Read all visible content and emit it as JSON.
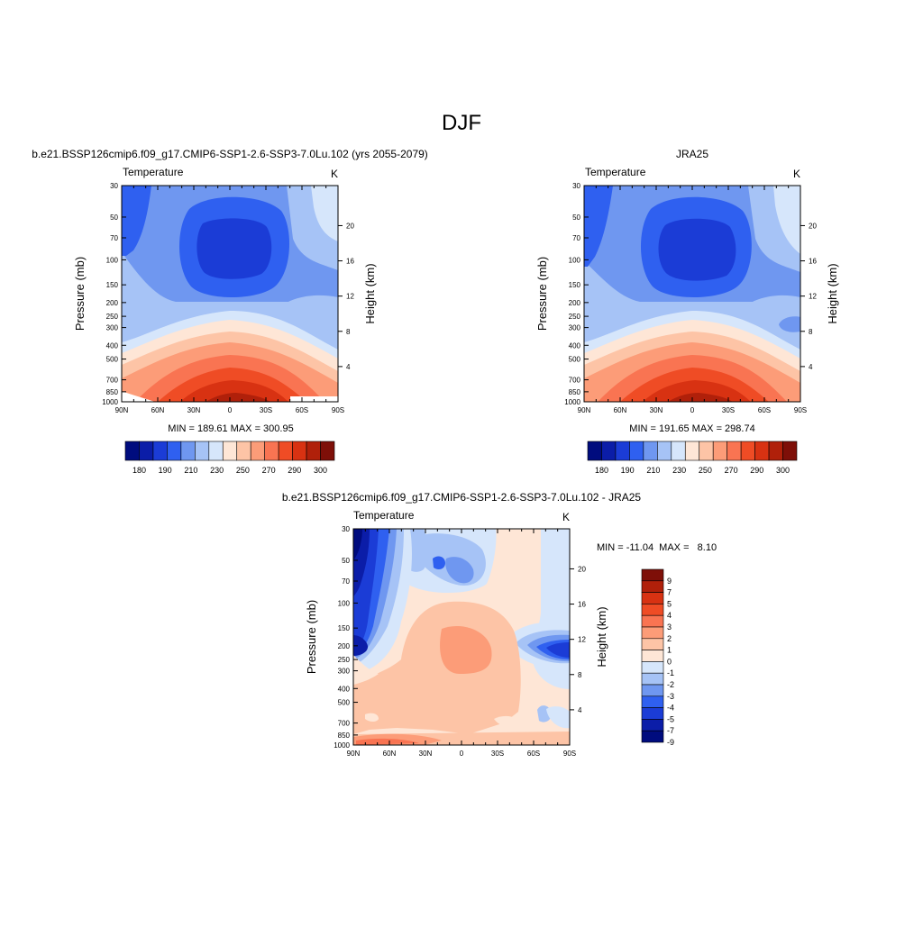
{
  "page_title": "DJF",
  "panels": [
    {
      "kind": "model",
      "title": "b.e21.BSSP126cmip6.f09_g17.CMIP6-SSP1-2.6-SSP3-7.0Lu.102 (yrs 2055-2079)",
      "left_string": "Temperature",
      "right_string": "K",
      "ylabel": "Pressure (mb)",
      "ylabel_right": "Height (km)",
      "stats": "MIN = 189.61  MAX = 300.95",
      "min": 189.61,
      "max": 300.95
    },
    {
      "kind": "obs",
      "title": "JRA25",
      "left_string": "Temperature",
      "right_string": "K",
      "ylabel": "Pressure (mb)",
      "ylabel_right": "Height (km)",
      "stats": "MIN = 191.65  MAX = 298.74",
      "min": 191.65,
      "max": 298.74
    },
    {
      "kind": "diff",
      "title": "b.e21.BSSP126cmip6.f09_g17.CMIP6-SSP1-2.6-SSP3-7.0Lu.102 - JRA25",
      "left_string": "Temperature",
      "right_string": "K",
      "ylabel": "Pressure (mb)",
      "ylabel_right": "Height (km)",
      "stats": "MIN = -11.04  MAX =   8.10",
      "min": -11.04,
      "max": 8.1
    }
  ],
  "chart_data": [
    {
      "type": "heatmap",
      "title": "b.e21.BSSP126cmip6.f09_g17.CMIP6-SSP1-2.6-SSP3-7.0Lu.102 (yrs 2055-2079)",
      "variable": "Temperature",
      "units": "K",
      "xlabel": "",
      "ylabel": "Pressure (mb)",
      "ylabel_right": "Height (km)",
      "x_ticks": [
        "90N",
        "60N",
        "30N",
        "0",
        "30S",
        "60S",
        "90S"
      ],
      "y_ticks": [
        30,
        50,
        70,
        100,
        150,
        200,
        250,
        300,
        400,
        500,
        700,
        850,
        1000
      ],
      "y_right_ticks": [
        4,
        8,
        12,
        16,
        20
      ],
      "y_scale": "log",
      "contour_levels": [
        180,
        185,
        190,
        195,
        200,
        205,
        210,
        215,
        220,
        225,
        230,
        235,
        240,
        245,
        250,
        255,
        260,
        265,
        270,
        275,
        280,
        285,
        290,
        295,
        300
      ],
      "colorbar_labels": [
        180,
        190,
        210,
        230,
        250,
        270,
        290,
        300
      ],
      "min": 189.61,
      "max": 300.95
    },
    {
      "type": "heatmap",
      "title": "JRA25",
      "variable": "Temperature",
      "units": "K",
      "xlabel": "",
      "ylabel": "Pressure (mb)",
      "ylabel_right": "Height (km)",
      "x_ticks": [
        "90N",
        "60N",
        "30N",
        "0",
        "30S",
        "60S",
        "90S"
      ],
      "y_ticks": [
        30,
        50,
        70,
        100,
        150,
        200,
        250,
        300,
        400,
        500,
        700,
        850,
        1000
      ],
      "y_right_ticks": [
        4,
        8,
        12,
        16,
        20
      ],
      "y_scale": "log",
      "colorbar_labels": [
        180,
        190,
        210,
        230,
        250,
        270,
        290,
        300
      ],
      "min": 191.65,
      "max": 298.74
    },
    {
      "type": "heatmap",
      "title": "b.e21.BSSP126cmip6.f09_g17.CMIP6-SSP1-2.6-SSP3-7.0Lu.102 - JRA25",
      "variable": "Temperature",
      "units": "K",
      "xlabel": "",
      "ylabel": "Pressure (mb)",
      "ylabel_right": "Height (km)",
      "x_ticks": [
        "90N",
        "60N",
        "30N",
        "0",
        "30S",
        "60S",
        "90S"
      ],
      "y_ticks": [
        30,
        50,
        70,
        100,
        150,
        200,
        250,
        300,
        400,
        500,
        700,
        850,
        1000
      ],
      "y_right_ticks": [
        4,
        8,
        12,
        16,
        20
      ],
      "y_scale": "log",
      "colorbar_labels": [
        9,
        7,
        5,
        4,
        3,
        2,
        1,
        0,
        -1,
        -2,
        -3,
        -4,
        -5,
        -7,
        -9
      ],
      "min": -11.04,
      "max": 8.1
    }
  ],
  "colors": {
    "abs_colorbar": [
      "#000C7E",
      "#0B1DA8",
      "#1B3CD6",
      "#2F60F0",
      "#6F97F0",
      "#A6C3F6",
      "#D6E6FB",
      "#FEE6D6",
      "#FDC4A6",
      "#FC9C78",
      "#F97452",
      "#EF4C25",
      "#D83212",
      "#B0200A",
      "#7E0F08"
    ],
    "diff_colorbar": [
      "#7E0F08",
      "#B0200A",
      "#D83212",
      "#EF4C25",
      "#F97452",
      "#FC9C78",
      "#FDC4A6",
      "#FEE6D6",
      "#D6E6FB",
      "#A6C3F6",
      "#6F97F0",
      "#2F60F0",
      "#1B3CD6",
      "#0B1DA8",
      "#000C7E"
    ]
  }
}
